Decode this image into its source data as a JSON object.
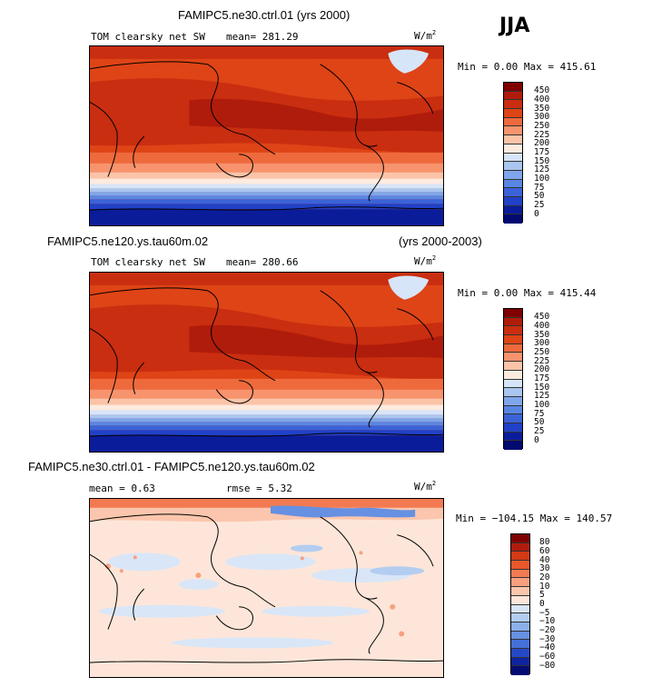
{
  "season": "JJA",
  "units": "W/m",
  "units_exp": "2",
  "panels": [
    {
      "title": "FAMIPC5.ne30.ctrl.01 (yrs 2000)",
      "title_right": "",
      "field": "TOM clearsky net SW",
      "stat1": "mean= 281.29",
      "stat2": "",
      "minmax": "Min =   0.00 Max = 415.61",
      "levels": [
        "450",
        "400",
        "350",
        "300",
        "250",
        "225",
        "200",
        "175",
        "150",
        "125",
        "100",
        "75",
        "50",
        "25",
        "0"
      ],
      "colors": [
        "#7f0000",
        "#b01c0b",
        "#c92e10",
        "#de4416",
        "#ee6a3c",
        "#f7936d",
        "#fbc4a8",
        "#fdebe0",
        "#d7e5f8",
        "#a9c6f0",
        "#7fa6ea",
        "#5a86e3",
        "#3b63d8",
        "#2141c8",
        "#0b1c9a",
        "#020a70"
      ]
    },
    {
      "title": "FAMIPC5.ne120.ys.tau60m.02",
      "title_right": "(yrs 2000-2003)",
      "field": "TOM clearsky net SW",
      "stat1": "mean= 280.66",
      "stat2": "",
      "minmax": "Min =   0.00 Max = 415.44",
      "levels": [
        "450",
        "400",
        "350",
        "300",
        "250",
        "225",
        "200",
        "175",
        "150",
        "125",
        "100",
        "75",
        "50",
        "25",
        "0"
      ],
      "colors": [
        "#7f0000",
        "#b01c0b",
        "#c92e10",
        "#de4416",
        "#ee6a3c",
        "#f7936d",
        "#fbc4a8",
        "#fdebe0",
        "#d7e5f8",
        "#a9c6f0",
        "#7fa6ea",
        "#5a86e3",
        "#3b63d8",
        "#2141c8",
        "#0b1c9a",
        "#020a70"
      ]
    },
    {
      "title": "FAMIPC5.ne30.ctrl.01 - FAMIPC5.ne120.ys.tau60m.02",
      "title_right": "",
      "field": "",
      "stat1": "mean =    0.63",
      "stat2": "rmse =    5.32",
      "minmax": "Min = −104.15 Max = 140.57",
      "levels": [
        "80",
        "60",
        "40",
        "30",
        "20",
        "10",
        "5",
        "0",
        "−5",
        "−10",
        "−20",
        "−30",
        "−40",
        "−60",
        "−80"
      ],
      "colors": [
        "#7f0000",
        "#b01c0b",
        "#d43a14",
        "#e8582a",
        "#f27a52",
        "#f8a07e",
        "#fbc6ad",
        "#fde6d9",
        "#d9e6f7",
        "#b3cdf0",
        "#8cb0ea",
        "#6690e2",
        "#4470d8",
        "#2448c6",
        "#0e24a0",
        "#030c72"
      ]
    }
  ]
}
